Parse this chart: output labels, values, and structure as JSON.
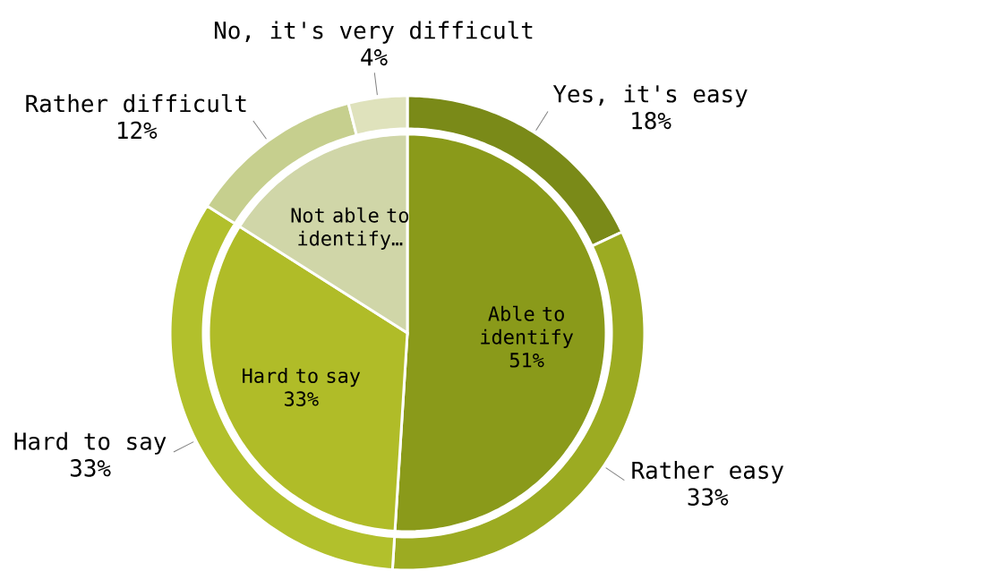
{
  "chart_data": [
    {
      "type": "pie",
      "categories": [
        "Able to identify",
        "Hard to say",
        "Not able to identify…"
      ],
      "values": [
        51,
        33,
        16
      ],
      "colors": [
        "#8a9a1a",
        "#b0bc28",
        "#d0d6a8"
      ],
      "value_labels": [
        "51%",
        "33%",
        null
      ]
    },
    {
      "type": "donut",
      "categories": [
        "Yes, it's easy",
        "Rather easy",
        "Hard to say",
        "Rather difficult",
        "No, it's very difficult"
      ],
      "values": [
        18,
        33,
        33,
        12,
        4
      ],
      "colors": [
        "#7a8a18",
        "#9cab22",
        "#b2c02c",
        "#c6cf8e",
        "#dfe2bc"
      ],
      "value_labels": [
        "18%",
        "33%",
        "33%",
        "12%",
        "4%"
      ]
    }
  ]
}
